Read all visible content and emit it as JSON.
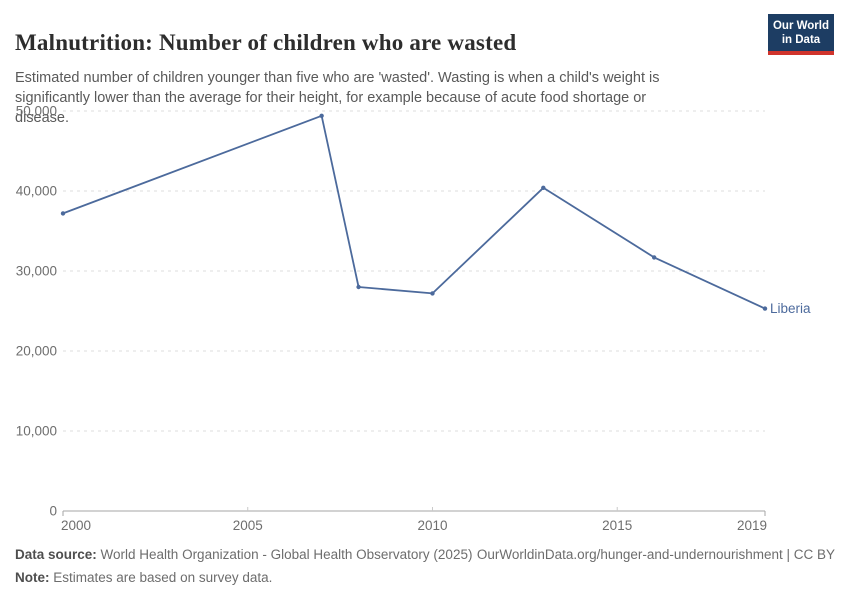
{
  "header": {
    "title": "Malnutrition: Number of children who are wasted",
    "subtitle_line1": "Estimated number of children younger than five who are 'wasted'. Wasting is when a child's weight is",
    "subtitle_line2": "significantly lower than the average for their height, for example because of acute food shortage or disease.",
    "logo_line1": "Our World",
    "logo_line2": "in Data"
  },
  "chart_data": {
    "type": "line",
    "title": "Malnutrition: Number of children who are wasted",
    "series": [
      {
        "name": "Liberia",
        "x": [
          2000,
          2007,
          2008,
          2010,
          2013,
          2016,
          2019
        ],
        "values": [
          37200,
          49400,
          28000,
          27200,
          40400,
          31700,
          25300
        ]
      }
    ],
    "end_label": "Liberia",
    "x_ticks": [
      2000,
      2005,
      2010,
      2015,
      2019
    ],
    "y_ticks": [
      0,
      10000,
      20000,
      30000,
      40000,
      50000
    ],
    "xlim": [
      2000,
      2019
    ],
    "ylim": [
      0,
      50000
    ],
    "grid": "horizontal-dashed",
    "legend_position": "end-of-line",
    "line_color": "#4c6a9c",
    "grid_color": "#dedede",
    "axis_color": "#a6a6a6",
    "tick_text_color": "#6e6e6e"
  },
  "footer": {
    "datasource_label": "Data source:",
    "datasource_text": " World Health Organization - Global Health Observatory (2025)",
    "link_text": "OurWorldinData.org/hunger-and-undernourishment | CC BY",
    "note_label": "Note:",
    "note_text": " Estimates are based on survey data."
  }
}
